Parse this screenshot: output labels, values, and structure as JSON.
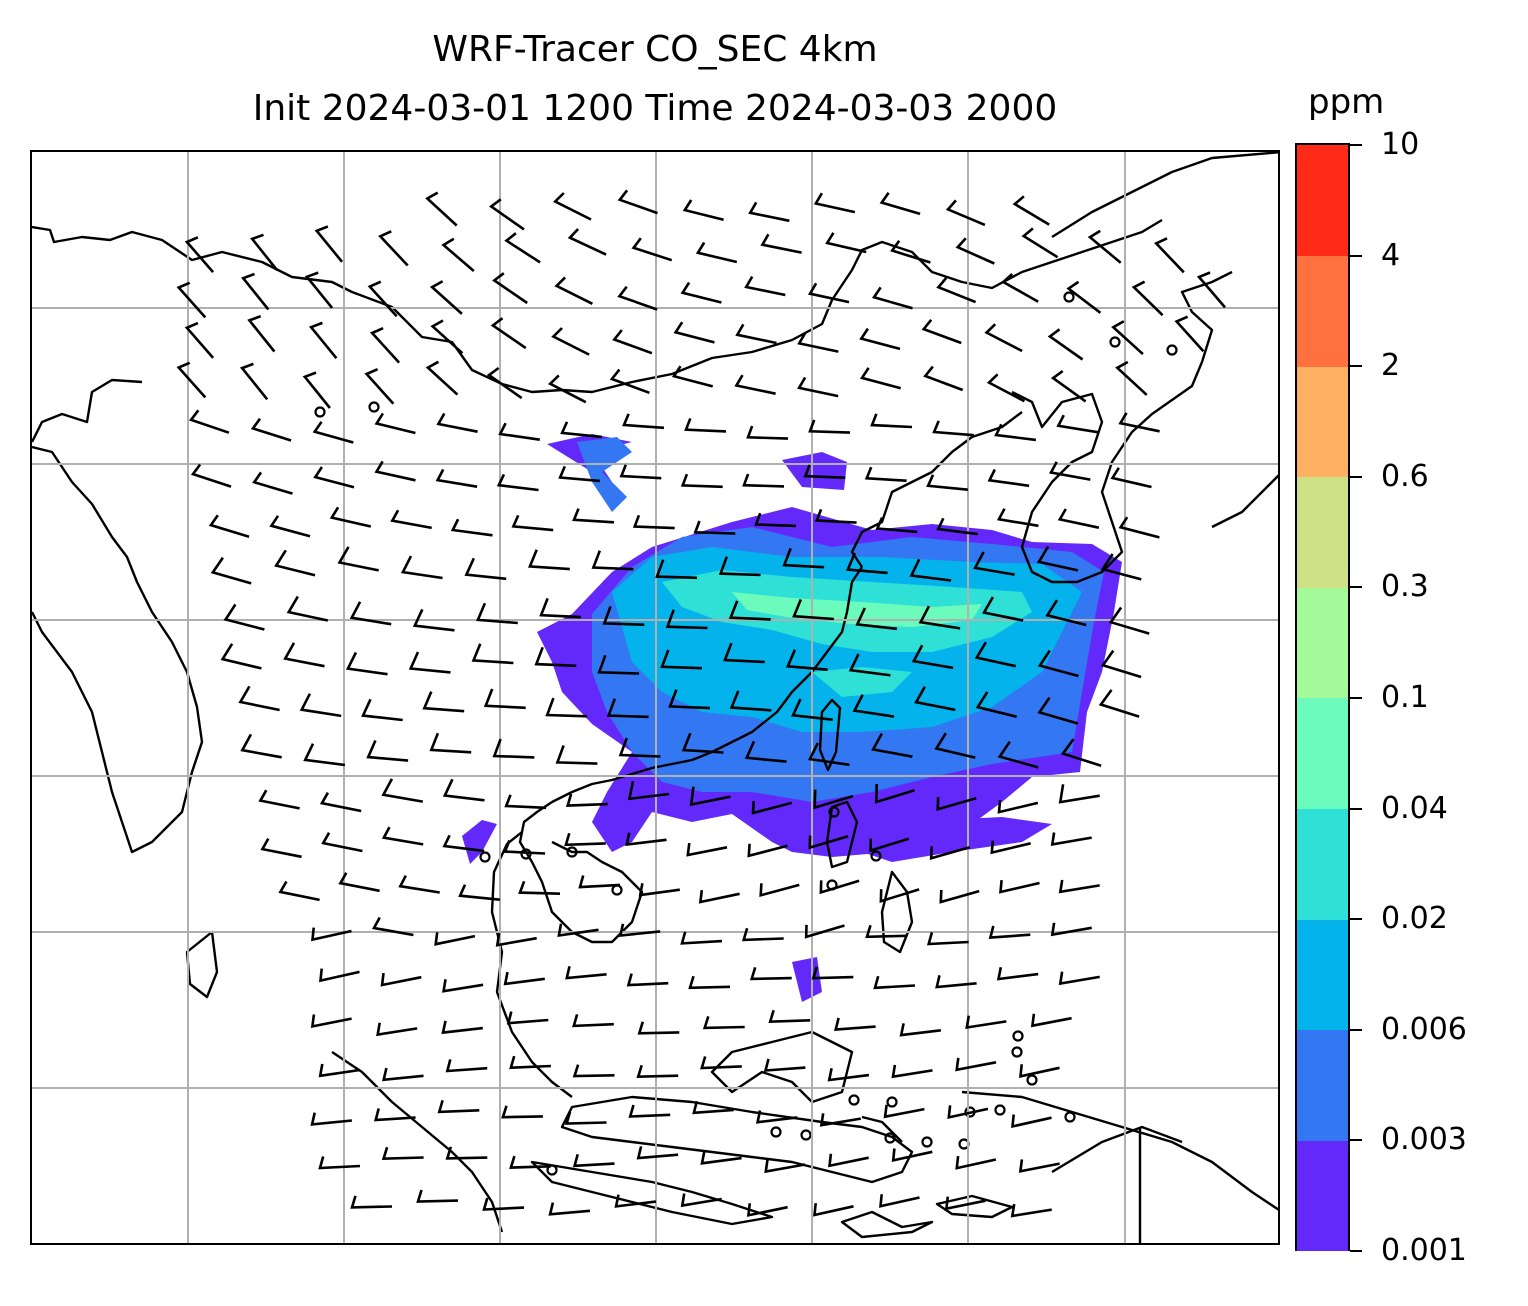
{
  "title": {
    "line1": "WRF-Tracer CO_SEC 4km",
    "line2": "Init 2024-03-01 1200 Time 2024-03-03 2000"
  },
  "colorbar": {
    "unit_label": "ppm",
    "levels": [
      "0.001",
      "0.003",
      "0.006",
      "0.02",
      "0.04",
      "0.1",
      "0.3",
      "0.6",
      "2",
      "4",
      "10"
    ],
    "colors": [
      "#6329fa",
      "#3377f2",
      "#05b3ec",
      "#2ee0d5",
      "#6bfcbd",
      "#a4f998",
      "#cfe186",
      "#fdb161",
      "#ff713f",
      "#ff2a17"
    ]
  },
  "map": {
    "field": "CO_SEC tracer concentration",
    "gridlines": true,
    "overlay": "wind barbs",
    "barb_color": "#000000",
    "coastline_color": "#000000",
    "grid_color": "#b0b0b0"
  }
}
